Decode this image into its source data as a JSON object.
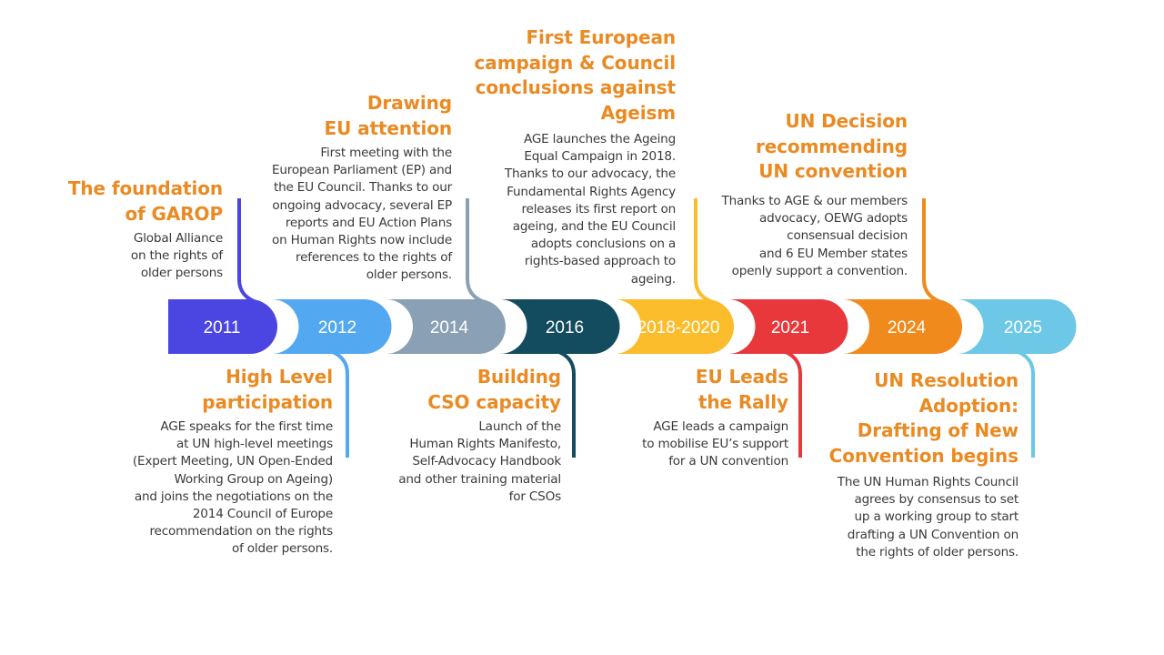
{
  "colors": {
    "title": "#ea8a22",
    "body_text": "#3a3a3a",
    "segments": [
      "#4b45e2",
      "#53a8f2",
      "#8aa0b4",
      "#124c5e",
      "#fbbd2c",
      "#e8383c",
      "#f18a1c",
      "#6dc7e6"
    ]
  },
  "years": [
    "2011",
    "2012",
    "2014",
    "2016",
    "2018-2020",
    "2021",
    "2024",
    "2025"
  ],
  "milestones": [
    {
      "year": "2011",
      "title": "The foundation\nof GAROP",
      "text": "Global Alliance\non the rights of\nolder persons"
    },
    {
      "year": "2012",
      "title": "High Level\nparticipation",
      "text": "AGE speaks for the first time\nat UN high-level meetings\n(Expert Meeting, UN Open-Ended\nWorking Group on Ageing)\nand joins the negotiations on the\n2014 Council of Europe\nrecommendation on the rights\nof older persons."
    },
    {
      "year": "2014",
      "title": "Drawing\nEU attention",
      "text": "First meeting with the\nEuropean Parliament (EP) and\nthe EU Council. Thanks to our\nongoing advocacy, several EP\nreports and EU Action Plans\non Human Rights now include\nreferences to the rights of\nolder persons."
    },
    {
      "year": "2016",
      "title": "Building\nCSO capacity",
      "text": "Launch of the\nHuman Rights Manifesto,\nSelf-Advocacy Handbook\nand other training material\nfor CSOs"
    },
    {
      "year": "2018-2020",
      "title": "First European\ncampaign & Council\nconclusions against\nAgeism",
      "text": "AGE launches the Ageing\nEqual Campaign in 2018.\nThanks to our advocacy, the\nFundamental Rights Agency\nreleases its first report on\nageing, and the EU Council\nadopts conclusions on a\nrights-based approach to\nageing."
    },
    {
      "year": "2021",
      "title": "EU Leads\nthe Rally",
      "text": "AGE leads a campaign\nto mobilise EU’s support\nfor a UN convention"
    },
    {
      "year": "2024",
      "title": "UN Decision\nrecommending\nUN convention",
      "text": "Thanks to AGE & our members\nadvocacy, OEWG adopts\nconsensual decision\nand 6 EU Member states\nopenly support a convention."
    },
    {
      "year": "2025",
      "title": "UN Resolution\nAdoption:\nDrafting of New\nConvention begins",
      "text": "The UN Human Rights Council\nagrees by consensus to set\nup a working group to start\ndrafting a UN Convention on\nthe rights of older persons."
    }
  ]
}
